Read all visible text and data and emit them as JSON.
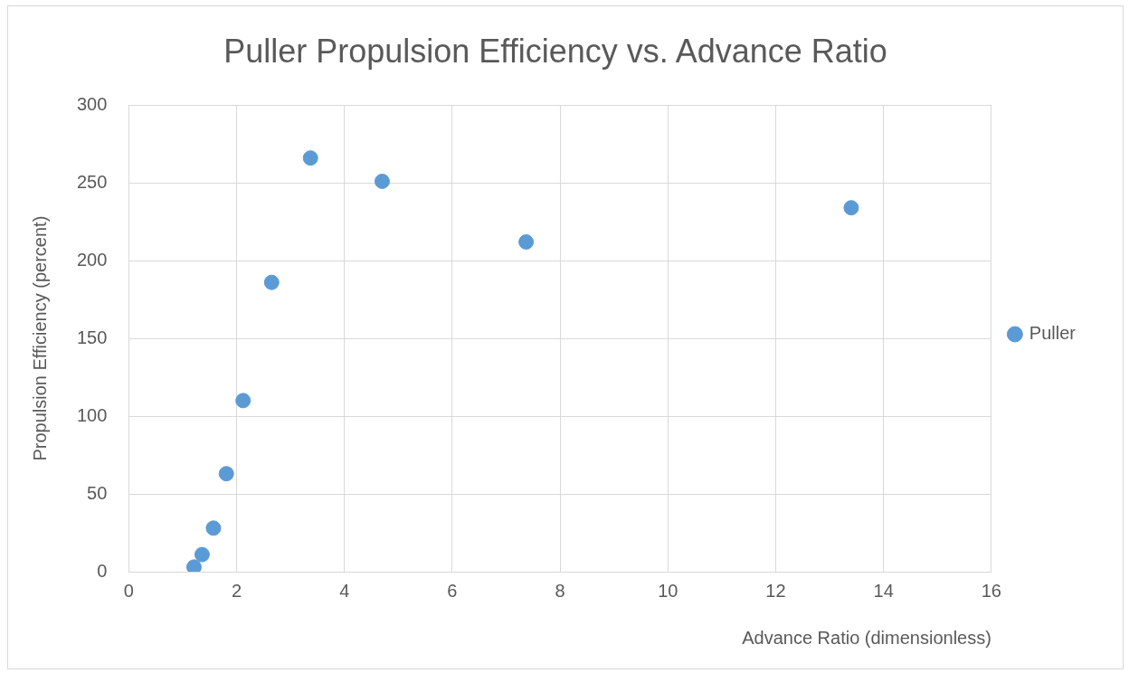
{
  "chart_data": {
    "type": "scatter",
    "title": "Puller Propulsion Efficiency vs. Advance Ratio",
    "xlabel": "Advance Ratio (dimensionless)",
    "ylabel": "Propulsion Efficiency (percent)",
    "series": [
      {
        "name": "Puller",
        "color": "#5b9bd5",
        "x": [
          1.21,
          1.36,
          1.57,
          1.81,
          2.12,
          2.65,
          3.37,
          4.7,
          7.37,
          13.4
        ],
        "values": [
          3,
          11,
          28,
          63,
          110,
          186,
          266,
          251,
          212,
          234
        ]
      }
    ],
    "xlim": [
      0,
      16
    ],
    "xticks": [
      0,
      2,
      4,
      6,
      8,
      10,
      12,
      14,
      16
    ],
    "ylim": [
      0,
      300
    ],
    "yticks": [
      0,
      50,
      100,
      150,
      200,
      250,
      300
    ],
    "grid": true,
    "legend": "right",
    "marker": "circle"
  }
}
